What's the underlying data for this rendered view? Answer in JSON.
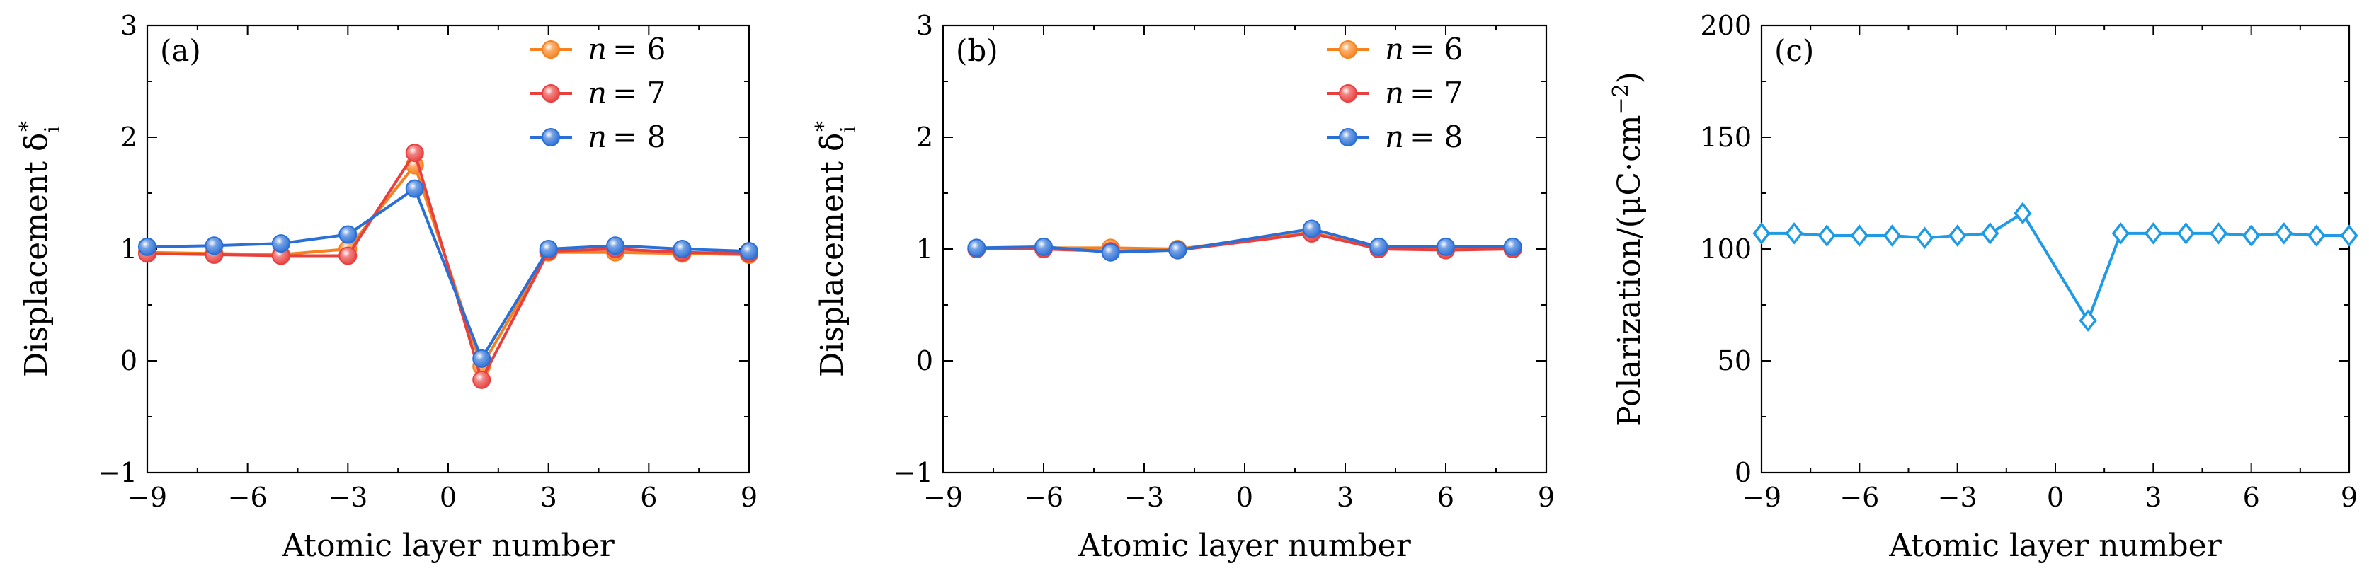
{
  "chart_data": [
    {
      "type": "line",
      "panel_label": "(a)",
      "xlabel": "Atomic layer number",
      "ylabel": "Displacement δ",
      "ylabel_sub": "i",
      "ylabel_sup": "*",
      "xlim": [
        -9,
        9
      ],
      "ylim": [
        -1,
        3
      ],
      "xticks": [
        -9,
        -6,
        -3,
        0,
        3,
        6,
        9
      ],
      "xtick_labels": [
        "−9",
        "−6",
        "−3",
        "0",
        "3",
        "6",
        "9"
      ],
      "yticks": [
        -1,
        0,
        1,
        2,
        3
      ],
      "ytick_labels": [
        "−1",
        "0",
        "1",
        "2",
        "3"
      ],
      "legend_position": "top-right",
      "marker": "circle",
      "series": [
        {
          "name": "n = 6",
          "legend_var": "n",
          "legend_val": "= 6",
          "color": "#f5821f",
          "x": [
            -9,
            -7,
            -5,
            -3,
            -1,
            1,
            3,
            5,
            7,
            9
          ],
          "y": [
            0.97,
            0.96,
            0.95,
            1.0,
            1.75,
            -0.05,
            0.97,
            0.97,
            0.96,
            0.95
          ]
        },
        {
          "name": "n = 7",
          "legend_var": "n",
          "legend_val": "= 7",
          "color": "#e8403f",
          "x": [
            -9,
            -7,
            -5,
            -3,
            -1,
            1,
            3,
            5,
            7,
            9
          ],
          "y": [
            0.96,
            0.95,
            0.94,
            0.94,
            1.86,
            -0.17,
            0.98,
            1.0,
            0.97,
            0.96
          ]
        },
        {
          "name": "n = 8",
          "legend_var": "n",
          "legend_val": "= 8",
          "color": "#2a6fd6",
          "x": [
            -9,
            -7,
            -5,
            -3,
            -1,
            1,
            3,
            5,
            7,
            9
          ],
          "y": [
            1.02,
            1.03,
            1.05,
            1.13,
            1.54,
            0.02,
            1.0,
            1.03,
            1.0,
            0.98
          ]
        }
      ]
    },
    {
      "type": "line",
      "panel_label": "(b)",
      "xlabel": "Atomic layer number",
      "ylabel": "Displacement δ",
      "ylabel_sub": "i",
      "ylabel_sup": "*",
      "xlim": [
        -9,
        9
      ],
      "ylim": [
        -1,
        3
      ],
      "xticks": [
        -9,
        -6,
        -3,
        0,
        3,
        6,
        9
      ],
      "xtick_labels": [
        "−9",
        "−6",
        "−3",
        "0",
        "3",
        "6",
        "9"
      ],
      "yticks": [
        -1,
        0,
        1,
        2,
        3
      ],
      "ytick_labels": [
        "−1",
        "0",
        "1",
        "2",
        "3"
      ],
      "legend_position": "top-right",
      "marker": "circle",
      "series": [
        {
          "name": "n = 6",
          "legend_var": "n",
          "legend_val": "= 6",
          "color": "#f5821f",
          "x": [
            -8,
            -6,
            -4,
            -2,
            2,
            4,
            6,
            8
          ],
          "y": [
            1.0,
            1.01,
            1.01,
            1.0,
            1.15,
            1.0,
            1.0,
            1.0
          ]
        },
        {
          "name": "n = 7",
          "legend_var": "n",
          "legend_val": "= 7",
          "color": "#e8403f",
          "x": [
            -8,
            -6,
            -4,
            -2,
            2,
            4,
            6,
            8
          ],
          "y": [
            1.0,
            1.0,
            0.98,
            0.99,
            1.14,
            1.0,
            0.99,
            1.0
          ]
        },
        {
          "name": "n = 8",
          "legend_var": "n",
          "legend_val": "= 8",
          "color": "#2a6fd6",
          "x": [
            -8,
            -6,
            -4,
            -2,
            2,
            4,
            6,
            8
          ],
          "y": [
            1.01,
            1.02,
            0.97,
            0.99,
            1.18,
            1.02,
            1.02,
            1.02
          ]
        }
      ]
    },
    {
      "type": "line",
      "panel_label": "(c)",
      "xlabel": "Atomic layer number",
      "ylabel": "Polarization/(μC·cm",
      "ylabel_sup": "−2",
      "ylabel_end": ")",
      "xlim": [
        -9,
        9
      ],
      "ylim": [
        0,
        200
      ],
      "xticks": [
        -9,
        -6,
        -3,
        0,
        3,
        6,
        9
      ],
      "xtick_labels": [
        "−9",
        "−6",
        "−3",
        "0",
        "3",
        "6",
        "9"
      ],
      "yticks": [
        0,
        50,
        100,
        150,
        200
      ],
      "ytick_labels": [
        "0",
        "50",
        "100",
        "150",
        "200"
      ],
      "marker": "diamond",
      "series": [
        {
          "color": "#1f9be6",
          "x": [
            -9,
            -8,
            -7,
            -6,
            -5,
            -4,
            -3,
            -2,
            -1,
            1,
            2,
            3,
            4,
            5,
            6,
            7,
            8,
            9
          ],
          "y": [
            107,
            107,
            106,
            106,
            106,
            105,
            106,
            107,
            116,
            68,
            107,
            107,
            107,
            107,
            106,
            107,
            106,
            106
          ]
        }
      ]
    }
  ]
}
